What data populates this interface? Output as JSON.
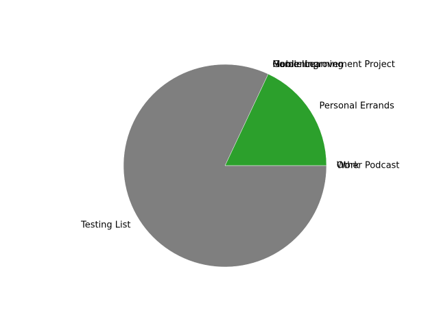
{
  "chart_data": {
    "type": "pie",
    "title": "",
    "labels": [
      "Work",
      "Personal Errands",
      "Mobile Learning",
      "Gardening",
      "Home Improvement Project",
      "Testing List",
      "Other Podcast"
    ],
    "values": [
      0,
      18,
      0,
      0,
      0,
      82,
      0
    ],
    "colors": [
      "#1f77b4",
      "#2ca02c",
      "#d62728",
      "#9467bd",
      "#8c564b",
      "#7f7f7f",
      "#bcbd22"
    ],
    "start_angle_deg": 0,
    "direction": "counterclockwise",
    "edgecolor": "#ffffff"
  }
}
